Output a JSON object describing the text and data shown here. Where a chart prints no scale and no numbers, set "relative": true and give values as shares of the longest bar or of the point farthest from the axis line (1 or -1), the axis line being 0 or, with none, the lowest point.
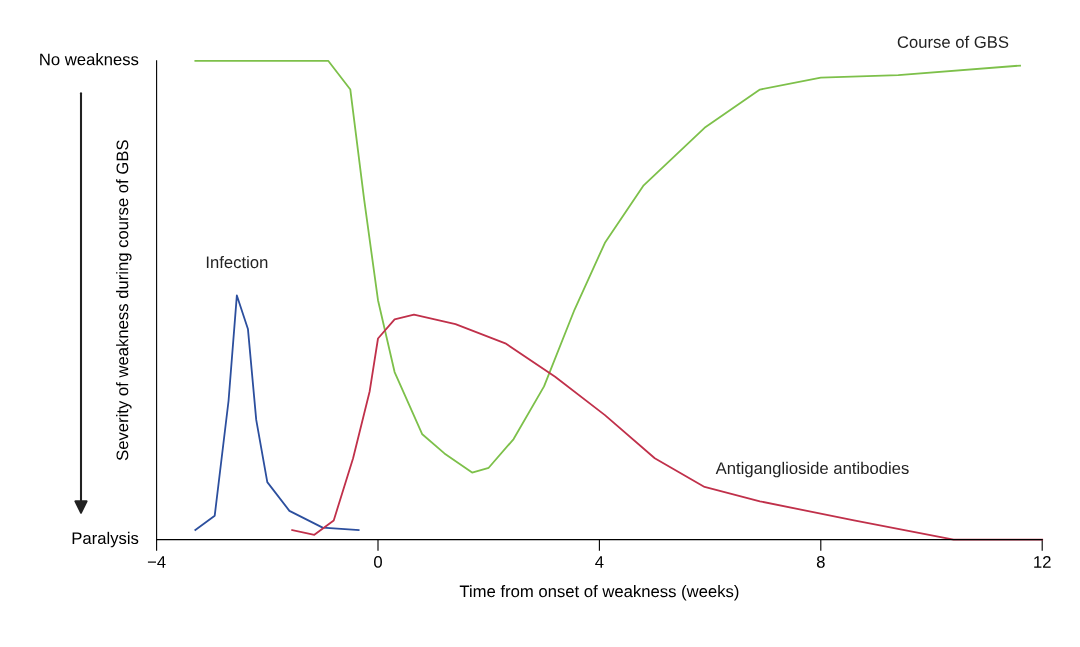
{
  "chart_data": {
    "type": "line",
    "xlabel": "Time from onset of weakness (weeks)",
    "ylabel": "Severity of weakness during course of GBS",
    "xlim": [
      -4,
      12
    ],
    "xticks": [
      {
        "value": -4,
        "label": "−4"
      },
      0,
      4,
      8,
      12
    ],
    "relative": true,
    "annotations": [
      "No weakness",
      "Paralysis"
    ],
    "grid": false,
    "legend": false,
    "marker": "none",
    "line_style": "solid",
    "series": [
      {
        "name": "Course of GBS",
        "color": "#7dc04a",
        "x": [
          -3.3,
          -2.0,
          -0.9,
          -0.5,
          -0.25,
          0,
          0.3,
          0.8,
          1.2,
          1.7,
          2.0,
          2.45,
          3.0,
          3.55,
          4.1,
          4.8,
          5.9,
          6.9,
          8,
          9.4,
          11.6
        ],
        "values": [
          1,
          1,
          1,
          0.94,
          0.71,
          0.5,
          0.35,
          0.22,
          0.18,
          0.14,
          0.15,
          0.21,
          0.32,
          0.48,
          0.62,
          0.74,
          0.86,
          0.94,
          0.965,
          0.97,
          0.99
        ]
      },
      {
        "name": "Infection",
        "color": "#2c4f9e",
        "x": [
          -3.3,
          -2.95,
          -2.7,
          -2.55,
          -2.35,
          -2.2,
          -2.0,
          -1.6,
          -1.0,
          -0.35
        ],
        "values": [
          0.02,
          0.05,
          0.29,
          0.51,
          0.44,
          0.25,
          0.12,
          0.06,
          0.025,
          0.02
        ]
      },
      {
        "name": "Antiganglioside antibodies",
        "color": "#c0304a",
        "x": [
          -1.55,
          -1.15,
          -0.8,
          -0.45,
          -0.15,
          0,
          0.3,
          0.65,
          1.4,
          2.3,
          3.2,
          4.1,
          5.0,
          5.9,
          6.9,
          8.6,
          10.4,
          12
        ],
        "values": [
          0.02,
          0.01,
          0.04,
          0.17,
          0.31,
          0.42,
          0.46,
          0.47,
          0.45,
          0.41,
          0.34,
          0.26,
          0.17,
          0.11,
          0.08,
          0.04,
          0.0,
          0.0
        ]
      }
    ]
  }
}
